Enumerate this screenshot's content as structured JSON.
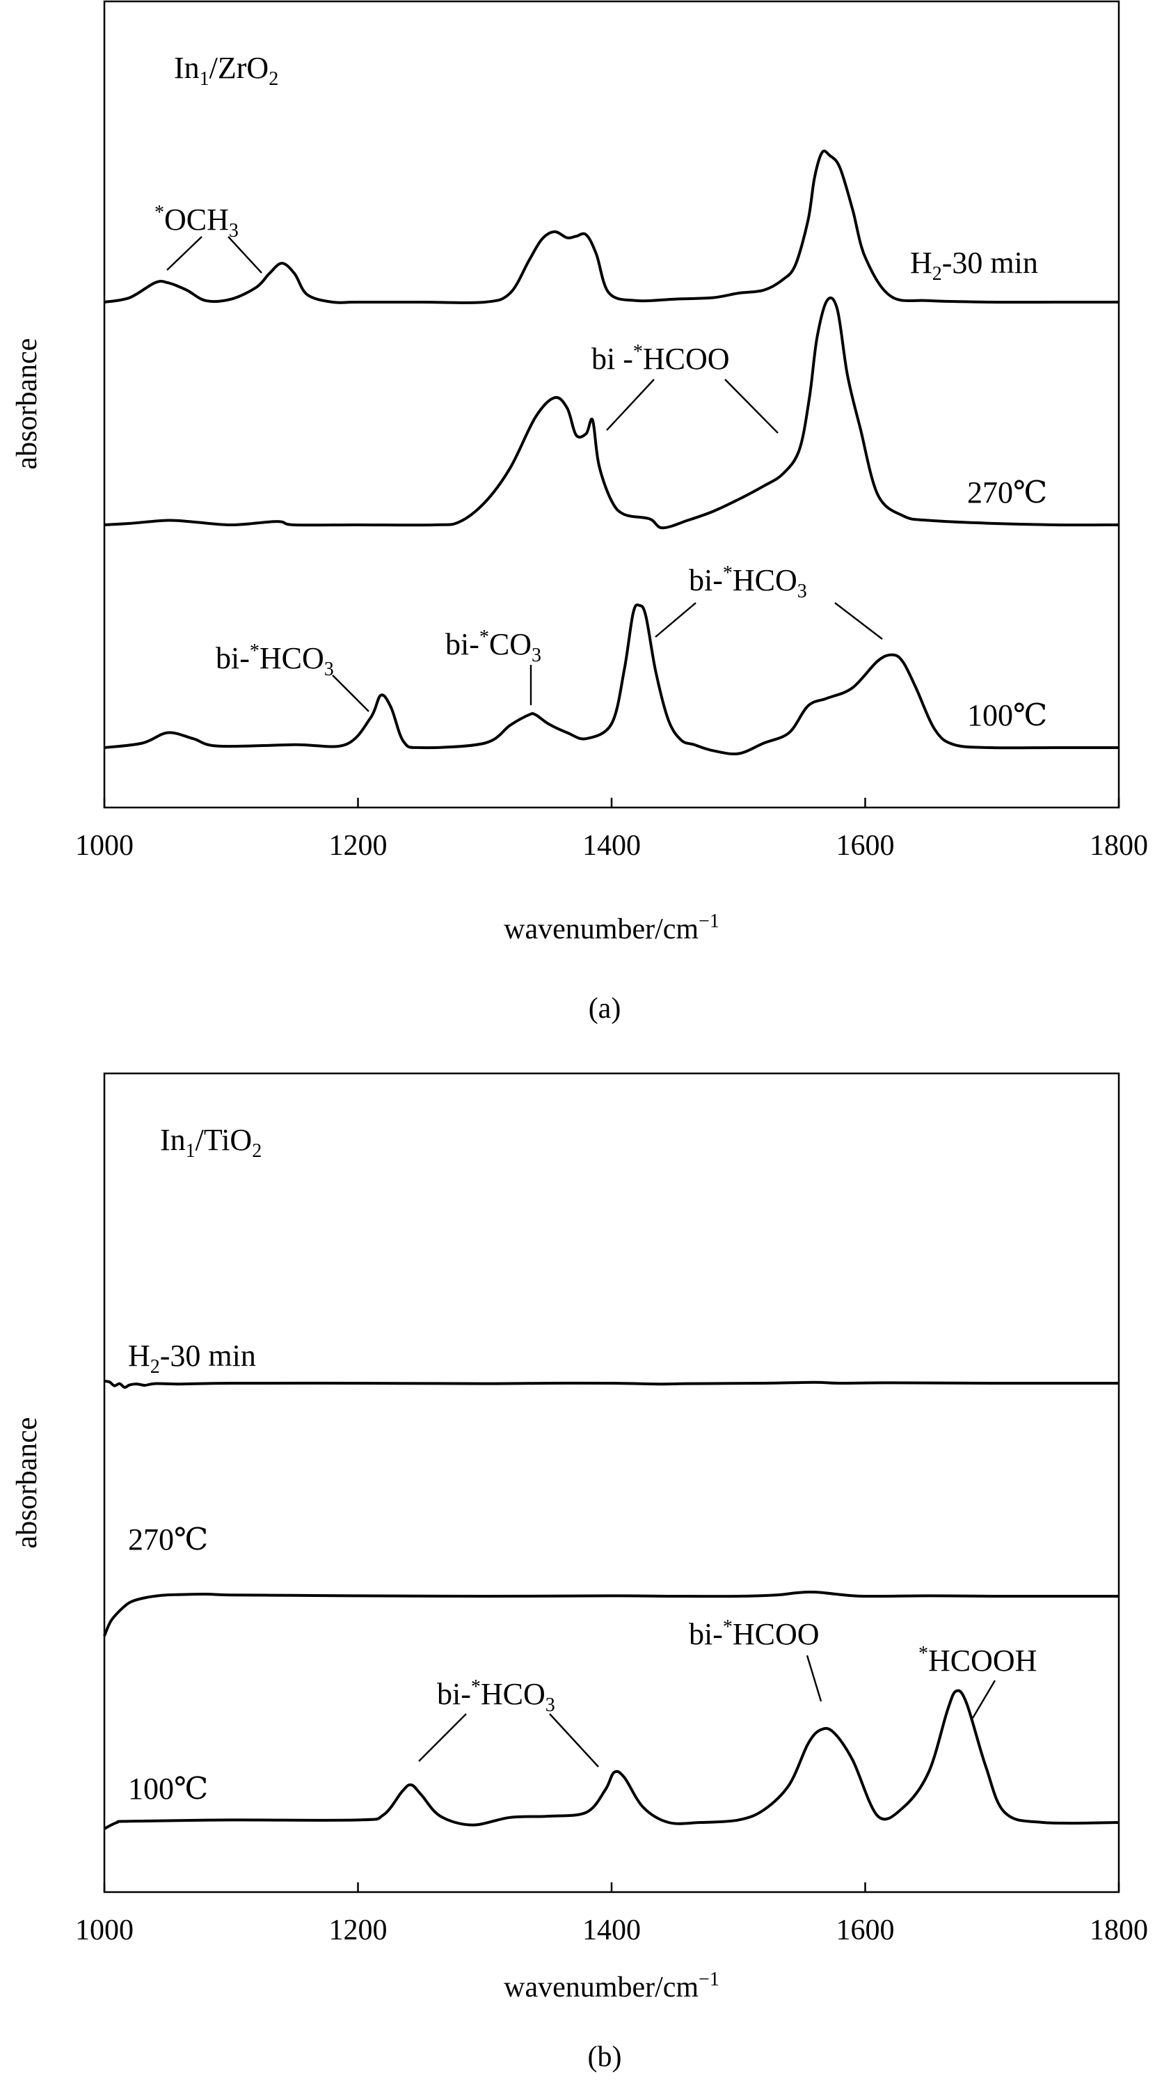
{
  "chart_data": [
    {
      "type": "line",
      "panel_label": "(a)",
      "sample_label": {
        "main": "In",
        "sub1": "1",
        "mid": "/ZrO",
        "sub2": "2"
      },
      "xlabel": "wavenumber/cm",
      "xlabel_sup": "−1",
      "ylabel": "absorbance",
      "xlim": [
        1000,
        1800
      ],
      "xticks": [
        "1000",
        "1200",
        "1400",
        "1600",
        "1800"
      ],
      "y_ticks_shown": false,
      "series": [
        {
          "name": "H2-30 min",
          "x": [
            1000,
            1020,
            1040,
            1050,
            1065,
            1080,
            1100,
            1120,
            1130,
            1140,
            1150,
            1160,
            1180,
            1200,
            1250,
            1300,
            1320,
            1335,
            1345,
            1355,
            1365,
            1372,
            1380,
            1388,
            1398,
            1420,
            1450,
            1480,
            1500,
            1520,
            1535,
            1545,
            1555,
            1560,
            1566,
            1572,
            1580,
            1590,
            1600,
            1620,
            1650,
            1700,
            1750,
            1800
          ],
          "y": [
            0,
            0.03,
            0.13,
            0.13,
            0.08,
            0.01,
            0.02,
            0.1,
            0.19,
            0.26,
            0.19,
            0.05,
            0,
            0,
            0,
            0,
            0.06,
            0.28,
            0.42,
            0.47,
            0.43,
            0.44,
            0.45,
            0.32,
            0.06,
            0.01,
            0.02,
            0.03,
            0.06,
            0.08,
            0.15,
            0.25,
            0.55,
            0.83,
            1.0,
            0.98,
            0.9,
            0.62,
            0.3,
            0.04,
            0.01,
            0,
            0,
            0
          ]
        },
        {
          "name": "270℃",
          "x": [
            1000,
            1020,
            1050,
            1070,
            1100,
            1130,
            1140,
            1150,
            1200,
            1260,
            1280,
            1300,
            1320,
            1340,
            1355,
            1365,
            1372,
            1380,
            1385,
            1390,
            1400,
            1410,
            1430,
            1440,
            1460,
            1480,
            1500,
            1520,
            1535,
            1548,
            1556,
            1562,
            1570,
            1578,
            1586,
            1596,
            1610,
            1630,
            1650,
            1700,
            1750,
            1800
          ],
          "y": [
            0,
            0.01,
            0.03,
            0.02,
            0,
            0.02,
            0.02,
            0,
            0,
            0,
            0.02,
            0.15,
            0.38,
            0.72,
            0.85,
            0.78,
            0.6,
            0.61,
            0.7,
            0.4,
            0.16,
            0.07,
            0.04,
            -0.02,
            0.03,
            0.09,
            0.17,
            0.26,
            0.34,
            0.5,
            0.85,
            1.25,
            1.5,
            1.44,
            1.0,
            0.65,
            0.2,
            0.06,
            0.03,
            0.01,
            0,
            0
          ]
        },
        {
          "name": "100℃",
          "x": [
            1000,
            1030,
            1050,
            1070,
            1090,
            1150,
            1190,
            1210,
            1218,
            1226,
            1236,
            1250,
            1300,
            1320,
            1335,
            1340,
            1350,
            1365,
            1380,
            1400,
            1410,
            1417,
            1422,
            1427,
            1435,
            1445,
            1455,
            1465,
            1480,
            1500,
            1520,
            1540,
            1555,
            1570,
            1590,
            1610,
            1622,
            1630,
            1640,
            1655,
            1670,
            1700,
            1750,
            1800
          ],
          "y": [
            0,
            0.03,
            0.1,
            0.06,
            0.01,
            0.02,
            0.02,
            0.2,
            0.35,
            0.27,
            0.04,
            0,
            0.03,
            0.15,
            0.22,
            0.22,
            0.16,
            0.1,
            0.06,
            0.16,
            0.52,
            0.9,
            0.95,
            0.88,
            0.5,
            0.18,
            0.05,
            0.02,
            -0.02,
            -0.04,
            0.03,
            0.1,
            0.28,
            0.33,
            0.4,
            0.58,
            0.62,
            0.57,
            0.4,
            0.12,
            0.02,
            0,
            0,
            0
          ]
        }
      ],
      "annotations": {
        "och3": "OCH",
        "och3_sub": "3",
        "hcoo": "bi -",
        "hcoo_rest": "HCOO",
        "hco3_left": "bi-",
        "hco3_left_rest": "HCO",
        "hco3_left_sub": "3",
        "co3": "bi-",
        "co3_rest": "CO",
        "co3_sub": "3",
        "hco3_right": "bi-",
        "hco3_right_rest": "HCO",
        "hco3_right_sub": "3",
        "star": "*"
      },
      "curve_labels": [
        {
          "main": "H",
          "sub": "2",
          "rest": "-30 min"
        },
        {
          "main": "270℃",
          "sub": "",
          "rest": ""
        },
        {
          "main": "100℃",
          "sub": "",
          "rest": ""
        }
      ]
    },
    {
      "type": "line",
      "panel_label": "(b)",
      "sample_label": {
        "main": "In",
        "sub1": "1",
        "mid": "/TiO",
        "sub2": "2"
      },
      "xlabel": "wavenumber/cm",
      "xlabel_sup": "−1",
      "ylabel": "absorbance",
      "xlim": [
        1000,
        1800
      ],
      "xticks": [
        "1000",
        "1200",
        "1400",
        "1600",
        "1800"
      ],
      "y_ticks_shown": false,
      "series": [
        {
          "name": "H2-30 min",
          "x": [
            1000,
            1004,
            1008,
            1012,
            1016,
            1020,
            1026,
            1032,
            1040,
            1060,
            1100,
            1200,
            1300,
            1350,
            1400,
            1440,
            1460,
            1520,
            1560,
            1580,
            1620,
            1700,
            1800
          ],
          "y": [
            0.05,
            0.03,
            -0.06,
            -0.01,
            -0.1,
            -0.04,
            -0.02,
            -0.05,
            -0.01,
            -0.02,
            0,
            0,
            -0.01,
            0,
            0,
            -0.02,
            -0.01,
            0,
            0.02,
            0,
            0.01,
            0,
            0
          ]
        },
        {
          "name": "270℃",
          "x": [
            1000,
            1005,
            1012,
            1020,
            1030,
            1045,
            1060,
            1080,
            1100,
            1150,
            1200,
            1300,
            1400,
            1450,
            1500,
            1530,
            1545,
            1555,
            1565,
            1580,
            1600,
            1650,
            1700,
            1800
          ],
          "y": [
            -0.95,
            -0.6,
            -0.35,
            -0.15,
            -0.05,
            0.02,
            0.04,
            0.05,
            0.03,
            0.02,
            0.01,
            0,
            0.01,
            0,
            0,
            0.03,
            0.08,
            0.1,
            0.09,
            0.04,
            0,
            0.01,
            0,
            0
          ]
        },
        {
          "name": "100℃",
          "x": [
            1000,
            1010,
            1020,
            1100,
            1200,
            1220,
            1235,
            1242,
            1250,
            1265,
            1290,
            1320,
            1350,
            1380,
            1395,
            1402,
            1410,
            1425,
            1445,
            1470,
            1500,
            1520,
            1540,
            1555,
            1565,
            1575,
            1590,
            1610,
            1630,
            1650,
            1665,
            1672,
            1680,
            1695,
            1710,
            1740,
            1800
          ],
          "y": [
            -0.05,
            0,
            0.01,
            0.02,
            0.02,
            0.06,
            0.25,
            0.3,
            0.22,
            0.05,
            -0.02,
            0.04,
            0.05,
            0.08,
            0.26,
            0.4,
            0.36,
            0.12,
            0,
            0,
            0.02,
            0.1,
            0.3,
            0.63,
            0.74,
            0.72,
            0.5,
            0.05,
            0.12,
            0.4,
            0.9,
            1.05,
            0.95,
            0.45,
            0.08,
            0,
            0
          ]
        }
      ],
      "annotations": {
        "hco3": "bi-",
        "hco3_rest": "HCO",
        "hco3_sub": "3",
        "hcoo": "bi-",
        "hcoo_rest": "HCOO",
        "hcooh": "HCOOH",
        "star": "*"
      },
      "curve_labels": [
        {
          "main": "H",
          "sub": "2",
          "rest": "-30 min"
        },
        {
          "main": "270℃",
          "sub": "",
          "rest": ""
        },
        {
          "main": "100℃",
          "sub": "",
          "rest": ""
        }
      ]
    }
  ]
}
